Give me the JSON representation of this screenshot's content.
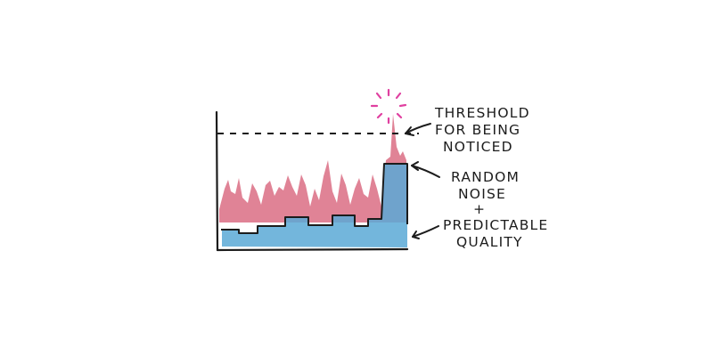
{
  "labels": {
    "threshold_line1": "THRESHOLD",
    "threshold_line2": "FOR BEING",
    "threshold_line3": "NOTICED",
    "noise_line1": "RANDOM",
    "noise_line2": "NOISE",
    "plus": "+",
    "quality_line1": "PREDICTABLE",
    "quality_line2": "QUALITY"
  },
  "colors": {
    "noise": "#d9687f",
    "quality": "#5aa9d6",
    "ink": "#1c1c1c",
    "burst": "#e040a0"
  }
}
